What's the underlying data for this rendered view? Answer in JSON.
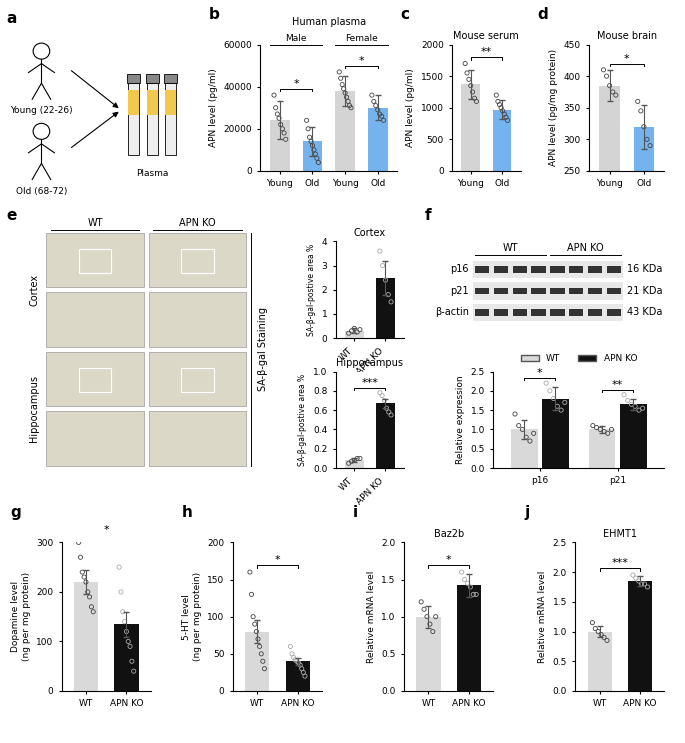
{
  "diagram": {
    "panel": "a",
    "young": "Young (22-26)",
    "old": "Old (68-72)",
    "sample": "Plasma"
  },
  "staining": {
    "panel": "e",
    "columns": [
      "WT",
      "APN KO"
    ],
    "rows": [
      "Cortex",
      "Hippocampus"
    ],
    "stain": "SA-β-gal Staining"
  },
  "blot": {
    "panel": "f",
    "groups": [
      "WT",
      "APN KO"
    ],
    "lanes": [
      4,
      4
    ],
    "bands": [
      {
        "protein": "p16",
        "size": "16 KDa"
      },
      {
        "protein": "p21",
        "size": "21 KDa"
      },
      {
        "protein": "β-actin",
        "size": "43 KDa"
      }
    ]
  },
  "chart_data": [
    {
      "panel": "b",
      "type": "bar",
      "title": "Human plasma",
      "y_label": "APN level (pg/ml)",
      "categories": [
        "Young",
        "Old",
        "Young",
        "Old"
      ],
      "groups": [
        {
          "label": "Male",
          "members": [
            0,
            1
          ]
        },
        {
          "label": "Female",
          "members": [
            2,
            3
          ]
        }
      ],
      "values": [
        24000,
        14000,
        38000,
        30000
      ],
      "errors": [
        9000,
        7000,
        7000,
        6000
      ],
      "points": [
        [
          36000,
          30000,
          27000,
          25000,
          22000,
          20000,
          18000,
          15000
        ],
        [
          24000,
          20000,
          16000,
          14000,
          12000,
          10000,
          8000,
          6000,
          4000
        ],
        [
          47000,
          44000,
          41000,
          39000,
          37000,
          35000,
          33000,
          31000,
          30000
        ],
        [
          36000,
          33000,
          31000,
          29000,
          27000,
          26000,
          24000
        ]
      ],
      "colors": [
        "#d4d4d4",
        "#74b3ee",
        "#d4d4d4",
        "#74b3ee"
      ],
      "ylim": [
        0,
        60000
      ],
      "yticks": [
        0,
        20000,
        40000,
        60000
      ],
      "annotations": [
        {
          "text": "*",
          "between": [
            0,
            1
          ]
        },
        {
          "text": "*",
          "between": [
            2,
            3
          ]
        }
      ]
    },
    {
      "panel": "c",
      "type": "bar",
      "title": "Mouse serum",
      "y_label": "APN level (pg/ml)",
      "categories": [
        "Young",
        "Old"
      ],
      "values": [
        1370,
        970
      ],
      "errors": [
        230,
        150
      ],
      "points": [
        [
          1700,
          1550,
          1450,
          1350,
          1250,
          1150,
          1100
        ],
        [
          1200,
          1100,
          1050,
          1000,
          950,
          900,
          850,
          800
        ]
      ],
      "colors": [
        "#d4d4d4",
        "#74b3ee"
      ],
      "ylim": [
        0,
        2000
      ],
      "yticks": [
        0,
        500,
        1000,
        1500,
        2000
      ],
      "annotations": [
        {
          "text": "**",
          "between": [
            0,
            1
          ]
        }
      ]
    },
    {
      "panel": "d",
      "type": "bar",
      "title": "Mouse brain",
      "y_label": "APN level (pg/mg protein)",
      "categories": [
        "Young",
        "Old"
      ],
      "values": [
        385,
        320
      ],
      "errors": [
        25,
        35
      ],
      "points": [
        [
          410,
          400,
          385,
          375,
          370
        ],
        [
          360,
          345,
          320,
          300,
          290
        ]
      ],
      "colors": [
        "#d4d4d4",
        "#74b3ee"
      ],
      "ylim": [
        250,
        450
      ],
      "yticks": [
        250,
        300,
        350,
        400,
        450
      ],
      "annotations": [
        {
          "text": "*",
          "between": [
            0,
            1
          ]
        }
      ]
    },
    {
      "type": "bar",
      "title": "Cortex",
      "y_label": "SA-β-gal-postive area %",
      "categories": [
        "WT",
        "APN KO"
      ],
      "values": [
        0.3,
        2.5
      ],
      "errors": [
        0.1,
        0.7
      ],
      "points": [
        [
          0.2,
          0.3,
          0.4,
          0.25,
          0.35
        ],
        [
          3.6,
          3.0,
          2.4,
          1.8,
          1.5
        ]
      ],
      "colors": [
        "#d9d9d9",
        "#111111"
      ],
      "ylim": [
        0,
        4
      ],
      "yticks": [
        0,
        1,
        2,
        3,
        4
      ]
    },
    {
      "type": "bar",
      "title": "Hippocampus",
      "y_label": "SA-β-gal-postive area %",
      "categories": [
        "WT",
        "APN KO"
      ],
      "values": [
        0.08,
        0.67
      ],
      "errors": [
        0.02,
        0.05
      ],
      "points": [
        [
          0.05,
          0.07,
          0.08,
          0.1,
          0.1
        ],
        [
          0.78,
          0.75,
          0.7,
          0.62,
          0.58,
          0.55
        ]
      ],
      "colors": [
        "#d9d9d9",
        "#111111"
      ],
      "ylim": [
        0,
        1.0
      ],
      "yticks": [
        0.0,
        0.2,
        0.4,
        0.6,
        0.8,
        1.0
      ],
      "annotations": [
        {
          "text": "***",
          "between": [
            0,
            1
          ]
        }
      ]
    },
    {
      "type": "bar",
      "y_label": "Relative expression",
      "categories": [
        "p16",
        "p21"
      ],
      "legend": "top",
      "series": [
        {
          "name": "WT",
          "color": "#d9d9d9",
          "values": [
            1.0,
            1.0
          ],
          "errors": [
            0.25,
            0.1
          ],
          "points": [
            [
              1.4,
              1.1,
              1.0,
              0.8,
              0.7,
              0.9
            ],
            [
              1.1,
              1.05,
              1.0,
              0.95,
              0.9,
              1.0
            ]
          ]
        },
        {
          "name": "APN KO",
          "color": "#111111",
          "values": [
            1.8,
            1.65
          ],
          "errors": [
            0.3,
            0.15
          ],
          "points": [
            [
              2.2,
              2.0,
              1.8,
              1.6,
              1.5,
              1.7
            ],
            [
              1.9,
              1.75,
              1.65,
              1.6,
              1.5,
              1.55
            ]
          ]
        }
      ],
      "ylim": [
        0,
        2.5
      ],
      "yticks": [
        0.0,
        0.5,
        1.0,
        1.5,
        2.0,
        2.5
      ],
      "annotations": [
        {
          "text": "*",
          "category": 0
        },
        {
          "text": "**",
          "category": 1
        }
      ]
    },
    {
      "panel": "g",
      "type": "bar",
      "y_label": "Dopamine level\n(ng per mg protein)",
      "categories": [
        "WT",
        "APN KO"
      ],
      "values": [
        220,
        135
      ],
      "errors": [
        25,
        25
      ],
      "points": [
        [
          300,
          270,
          240,
          230,
          220,
          200,
          190,
          170,
          160
        ],
        [
          250,
          200,
          160,
          140,
          120,
          100,
          90,
          60,
          40
        ]
      ],
      "colors": [
        "#d9d9d9",
        "#111111"
      ],
      "ylim": [
        0,
        300
      ],
      "yticks": [
        0,
        100,
        200,
        300
      ],
      "annotations": [
        {
          "text": "*",
          "between": [
            0,
            1
          ]
        }
      ]
    },
    {
      "panel": "h",
      "type": "bar",
      "y_label": "5-HT level\n(ng per mg protein)",
      "categories": [
        "WT",
        "APN KO"
      ],
      "values": [
        80,
        40
      ],
      "errors": [
        15,
        5
      ],
      "points": [
        [
          160,
          130,
          100,
          90,
          80,
          70,
          60,
          50,
          40,
          30
        ],
        [
          60,
          50,
          45,
          42,
          40,
          38,
          35,
          30,
          25,
          20
        ]
      ],
      "colors": [
        "#d9d9d9",
        "#111111"
      ],
      "ylim": [
        0,
        200
      ],
      "yticks": [
        0,
        50,
        100,
        150,
        200
      ],
      "annotations": [
        {
          "text": "*",
          "between": [
            0,
            1
          ]
        }
      ]
    },
    {
      "panel": "i",
      "type": "bar",
      "title": "Baz2b",
      "y_label": "Relative mRNA level",
      "categories": [
        "WT",
        "APN KO"
      ],
      "values": [
        1.0,
        1.42
      ],
      "errors": [
        0.15,
        0.15
      ],
      "points": [
        [
          1.2,
          1.1,
          1.0,
          0.9,
          0.8,
          1.0
        ],
        [
          1.6,
          1.5,
          1.45,
          1.4,
          1.3,
          1.3
        ]
      ],
      "colors": [
        "#d9d9d9",
        "#111111"
      ],
      "ylim": [
        0,
        2.0
      ],
      "yticks": [
        0.0,
        0.5,
        1.0,
        1.5,
        2.0
      ],
      "annotations": [
        {
          "text": "*",
          "between": [
            0,
            1
          ]
        }
      ]
    },
    {
      "panel": "j",
      "type": "bar",
      "title": "EHMT1",
      "y_label": "Relative mRNA level",
      "categories": [
        "WT",
        "APN KO"
      ],
      "values": [
        1.0,
        1.85
      ],
      "errors": [
        0.1,
        0.08
      ],
      "points": [
        [
          1.15,
          1.05,
          1.0,
          0.95,
          0.9,
          0.85
        ],
        [
          1.95,
          1.9,
          1.85,
          1.8,
          1.8,
          1.75
        ]
      ],
      "colors": [
        "#d9d9d9",
        "#111111"
      ],
      "ylim": [
        0,
        2.5
      ],
      "yticks": [
        0.0,
        0.5,
        1.0,
        1.5,
        2.0,
        2.5
      ],
      "annotations": [
        {
          "text": "***",
          "between": [
            0,
            1
          ]
        }
      ]
    }
  ]
}
